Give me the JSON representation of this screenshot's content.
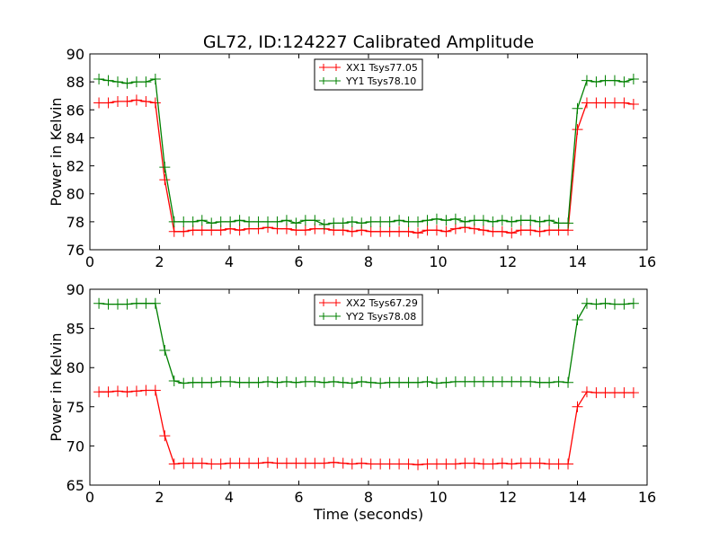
{
  "figure_title": "GL72, ID:124227 Calibrated Amplitude",
  "chart_data": [
    {
      "type": "line",
      "title": "GL72, ID:124227 Calibrated Amplitude",
      "xlabel": "",
      "ylabel": "Power in Kelvin",
      "xlim": [
        0,
        16
      ],
      "ylim": [
        76,
        90
      ],
      "xticks": [
        "0",
        "2",
        "4",
        "6",
        "8",
        "10",
        "12",
        "14",
        "16"
      ],
      "yticks": [
        "76",
        "78",
        "80",
        "82",
        "84",
        "86",
        "88",
        "90"
      ],
      "legend_position": "top-center",
      "x": [
        0.26,
        0.53,
        0.8,
        1.07,
        1.34,
        1.61,
        1.88,
        2.15,
        2.42,
        2.69,
        2.96,
        3.22,
        3.49,
        3.76,
        4.03,
        4.3,
        4.57,
        4.84,
        5.11,
        5.38,
        5.65,
        5.92,
        6.19,
        6.46,
        6.73,
        7.0,
        7.27,
        7.53,
        7.8,
        8.07,
        8.34,
        8.61,
        8.88,
        9.15,
        9.42,
        9.69,
        9.96,
        10.23,
        10.5,
        10.77,
        11.04,
        11.3,
        11.57,
        11.84,
        12.11,
        12.38,
        12.65,
        12.92,
        13.19,
        13.46,
        13.73,
        14.0,
        14.27,
        14.54,
        14.8,
        15.07,
        15.34,
        15.61
      ],
      "series": [
        {
          "name": "XX1 Tsys77.05",
          "color": "#ff0000",
          "marker": "+",
          "values": [
            86.5,
            86.5,
            86.6,
            86.6,
            86.7,
            86.6,
            86.5,
            81.0,
            77.3,
            77.3,
            77.4,
            77.4,
            77.4,
            77.4,
            77.5,
            77.4,
            77.5,
            77.5,
            77.6,
            77.5,
            77.5,
            77.4,
            77.4,
            77.5,
            77.5,
            77.4,
            77.4,
            77.3,
            77.4,
            77.3,
            77.3,
            77.3,
            77.3,
            77.3,
            77.2,
            77.4,
            77.4,
            77.3,
            77.5,
            77.6,
            77.5,
            77.4,
            77.3,
            77.3,
            77.2,
            77.4,
            77.4,
            77.3,
            77.4,
            77.4,
            77.4,
            84.6,
            86.5,
            86.5,
            86.5,
            86.5,
            86.5,
            86.4
          ]
        },
        {
          "name": "YY1 Tsys78.10",
          "color": "#008000",
          "marker": "+",
          "values": [
            88.2,
            88.1,
            88.0,
            87.9,
            88.0,
            88.0,
            88.2,
            81.9,
            78.0,
            78.0,
            78.0,
            78.1,
            77.9,
            78.0,
            78.0,
            78.1,
            78.0,
            78.0,
            78.0,
            78.0,
            78.1,
            77.9,
            78.1,
            78.1,
            77.8,
            77.9,
            77.9,
            78.0,
            77.9,
            78.0,
            78.0,
            78.0,
            78.1,
            78.0,
            78.0,
            78.1,
            78.2,
            78.1,
            78.2,
            78.0,
            78.1,
            78.1,
            78.0,
            78.1,
            78.0,
            78.1,
            78.1,
            78.0,
            78.1,
            77.9,
            77.9,
            86.1,
            88.1,
            88.0,
            88.1,
            88.1,
            88.0,
            88.2
          ]
        }
      ]
    },
    {
      "type": "line",
      "title": "",
      "xlabel": "Time (seconds)",
      "ylabel": "Power in Kelvin",
      "xlim": [
        0,
        16
      ],
      "ylim": [
        65,
        90
      ],
      "xticks": [
        "0",
        "2",
        "4",
        "6",
        "8",
        "10",
        "12",
        "14",
        "16"
      ],
      "yticks": [
        "65",
        "70",
        "75",
        "80",
        "85",
        "90"
      ],
      "legend_position": "top-center",
      "x": [
        0.26,
        0.53,
        0.8,
        1.07,
        1.34,
        1.61,
        1.88,
        2.15,
        2.42,
        2.69,
        2.96,
        3.22,
        3.49,
        3.76,
        4.03,
        4.3,
        4.57,
        4.84,
        5.11,
        5.38,
        5.65,
        5.92,
        6.19,
        6.46,
        6.73,
        7.0,
        7.27,
        7.53,
        7.8,
        8.07,
        8.34,
        8.61,
        8.88,
        9.15,
        9.42,
        9.69,
        9.96,
        10.23,
        10.5,
        10.77,
        11.04,
        11.3,
        11.57,
        11.84,
        12.11,
        12.38,
        12.65,
        12.92,
        13.19,
        13.46,
        13.73,
        14.0,
        14.27,
        14.54,
        14.8,
        15.07,
        15.34,
        15.61
      ],
      "series": [
        {
          "name": "XX2 Tsys67.29",
          "color": "#ff0000",
          "marker": "+",
          "values": [
            76.9,
            76.9,
            77.0,
            76.9,
            77.0,
            77.1,
            77.1,
            71.3,
            67.7,
            67.8,
            67.8,
            67.8,
            67.7,
            67.7,
            67.8,
            67.8,
            67.8,
            67.8,
            67.9,
            67.8,
            67.8,
            67.8,
            67.8,
            67.8,
            67.8,
            67.9,
            67.8,
            67.7,
            67.8,
            67.7,
            67.7,
            67.7,
            67.7,
            67.7,
            67.6,
            67.7,
            67.7,
            67.7,
            67.7,
            67.8,
            67.8,
            67.7,
            67.7,
            67.8,
            67.7,
            67.8,
            67.8,
            67.8,
            67.7,
            67.7,
            67.7,
            75.0,
            76.9,
            76.8,
            76.8,
            76.8,
            76.8,
            76.8
          ]
        },
        {
          "name": "YY2 Tsys78.08",
          "color": "#008000",
          "marker": "+",
          "values": [
            88.2,
            88.1,
            88.1,
            88.1,
            88.2,
            88.2,
            88.2,
            82.2,
            78.3,
            78.0,
            78.1,
            78.1,
            78.1,
            78.2,
            78.2,
            78.1,
            78.1,
            78.1,
            78.2,
            78.1,
            78.2,
            78.1,
            78.2,
            78.2,
            78.1,
            78.2,
            78.1,
            78.0,
            78.2,
            78.1,
            78.0,
            78.1,
            78.1,
            78.1,
            78.1,
            78.2,
            78.0,
            78.1,
            78.2,
            78.2,
            78.2,
            78.2,
            78.2,
            78.2,
            78.2,
            78.2,
            78.2,
            78.1,
            78.1,
            78.2,
            78.1,
            86.1,
            88.2,
            88.1,
            88.2,
            88.1,
            88.1,
            88.2
          ]
        }
      ]
    }
  ]
}
